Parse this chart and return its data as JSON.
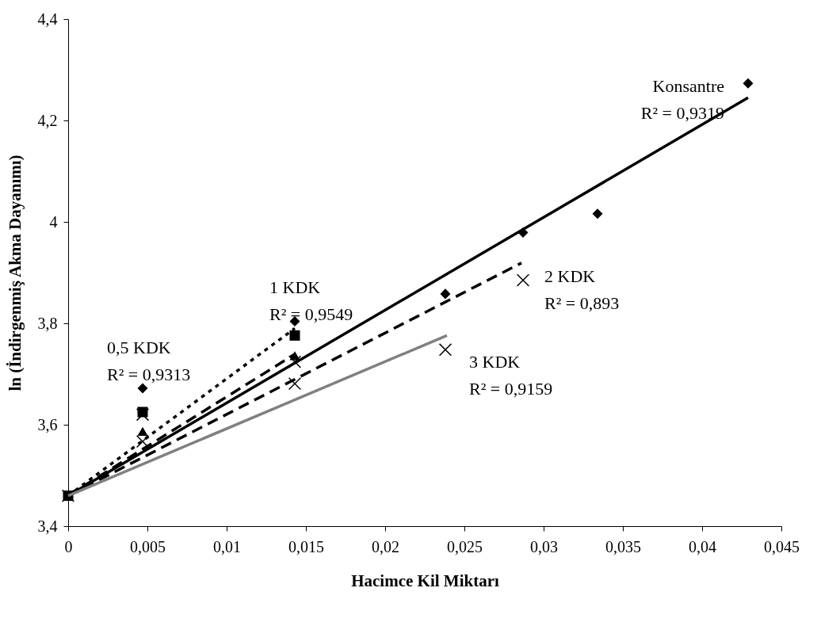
{
  "chart_data": {
    "type": "scatter",
    "xlabel": "Hacimce Kil Miktarı",
    "ylabel": "ln (İndirgenmiş Akma Dayanımı)",
    "xlim": [
      0,
      0.045
    ],
    "ylim": [
      3.4,
      4.4
    ],
    "xticks": [
      0,
      {
        "value": 0.005,
        "label": "0,005"
      },
      {
        "value": 0.01,
        "label": "0,01"
      },
      {
        "value": 0.015,
        "label": "0,015"
      },
      {
        "value": 0.02,
        "label": "0,02"
      },
      {
        "value": 0.025,
        "label": "0,025"
      },
      {
        "value": 0.03,
        "label": "0,03"
      },
      {
        "value": 0.035,
        "label": "0,035"
      },
      {
        "value": 0.04,
        "label": "0,04"
      },
      {
        "value": 0.045,
        "label": "0,045"
      }
    ],
    "yticks": [
      {
        "value": 3.4,
        "label": "3,4"
      },
      {
        "value": 3.6,
        "label": "3,6"
      },
      {
        "value": 3.8,
        "label": "3,8"
      },
      4,
      {
        "value": 4.2,
        "label": "4,2"
      },
      {
        "value": 4.4,
        "label": "4,4"
      }
    ],
    "grid": false,
    "series": [
      {
        "marker": "diamond",
        "color": "#000000",
        "x": [
          0.0047,
          0.0143,
          0.0238,
          0.0287,
          0.0334,
          0.0429
        ],
        "values": [
          3.672,
          3.804,
          3.858,
          3.979,
          4.016,
          4.273
        ]
      },
      {
        "marker": "square",
        "color": "#000000",
        "x": [
          0,
          0.0047,
          0.0143
        ],
        "values": [
          3.46,
          3.625,
          3.776
        ]
      },
      {
        "marker": "triangle",
        "color": "#000000",
        "x": [
          0.0047,
          0.0143
        ],
        "values": [
          3.587,
          3.736
        ]
      },
      {
        "marker": "cross",
        "color": "#000000",
        "x": [
          0,
          0.0047,
          0.0143,
          0.0287
        ],
        "values": [
          3.46,
          3.62,
          3.724,
          3.885
        ]
      },
      {
        "marker": "cross",
        "color": "#000000",
        "x": [
          0.0047,
          0.0143,
          0.0238
        ],
        "values": [
          3.567,
          3.681,
          3.748
        ]
      },
      {
        "type": "line",
        "line_style": "solid",
        "color": "#000000",
        "x": [
          0,
          0.0429
        ],
        "values": [
          3.46,
          4.245
        ]
      },
      {
        "type": "line",
        "line_style": "dotted",
        "color": "#000000",
        "x": [
          0,
          0.0143
        ],
        "values": [
          3.46,
          3.79
        ]
      },
      {
        "type": "line",
        "line_style": "dashed",
        "color": "#000000",
        "x": [
          0,
          0.0143
        ],
        "values": [
          3.46,
          3.739
        ]
      },
      {
        "type": "line",
        "line_style": "dashed",
        "color": "#000000",
        "x": [
          0,
          0.0286
        ],
        "values": [
          3.46,
          3.919
        ]
      },
      {
        "type": "line",
        "line_style": "solid",
        "color": "#808080",
        "x": [
          0,
          0.0239
        ],
        "values": [
          3.46,
          3.776
        ]
      }
    ],
    "annotations": [
      {
        "text": "Konsantre\nR² = 0,9319",
        "x": 0.0429,
        "y": 4.273
      },
      {
        "text": "0,5 KDK\nR² = 0,9313",
        "x": 0.0047,
        "y": 3.672
      },
      {
        "text": "1 KDK\nR² = 0,9549",
        "x": 0.0143,
        "y": 3.804
      },
      {
        "text": "2 KDK\nR² = 0,893",
        "x": 0.0287,
        "y": 3.885
      },
      {
        "text": "3 KDK\nR² = 0,9159",
        "x": 0.0238,
        "y": 3.748
      }
    ]
  }
}
